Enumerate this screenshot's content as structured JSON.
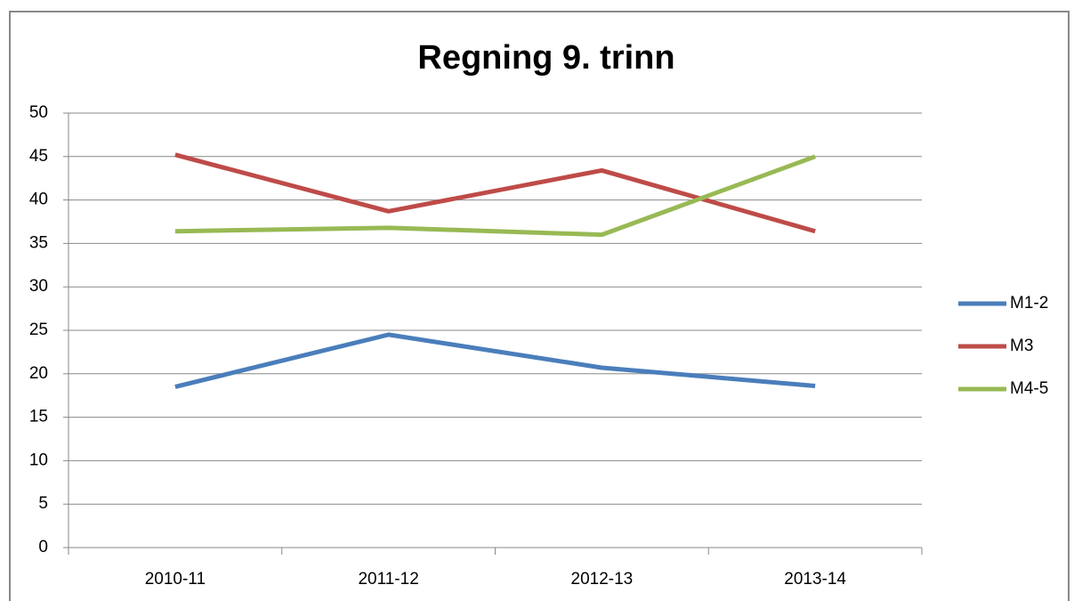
{
  "chart_data": {
    "type": "line",
    "title": "Regning 9. trinn",
    "categories": [
      "2010-11",
      "2011-12",
      "2012-13",
      "2013-14"
    ],
    "series": [
      {
        "name": "M1-2",
        "color": "#4a7ebb",
        "values": [
          18.5,
          24.5,
          20.7,
          18.6
        ]
      },
      {
        "name": "M3",
        "color": "#be4b48",
        "values": [
          45.2,
          38.7,
          43.4,
          36.4
        ]
      },
      {
        "name": "M4-5",
        "color": "#98b954",
        "values": [
          36.4,
          36.8,
          36.0,
          45.0
        ]
      }
    ],
    "ylim": [
      0,
      50
    ],
    "yticks": [
      0,
      5,
      10,
      15,
      20,
      25,
      30,
      35,
      40,
      45,
      50
    ],
    "grid": true,
    "legend": "right"
  }
}
